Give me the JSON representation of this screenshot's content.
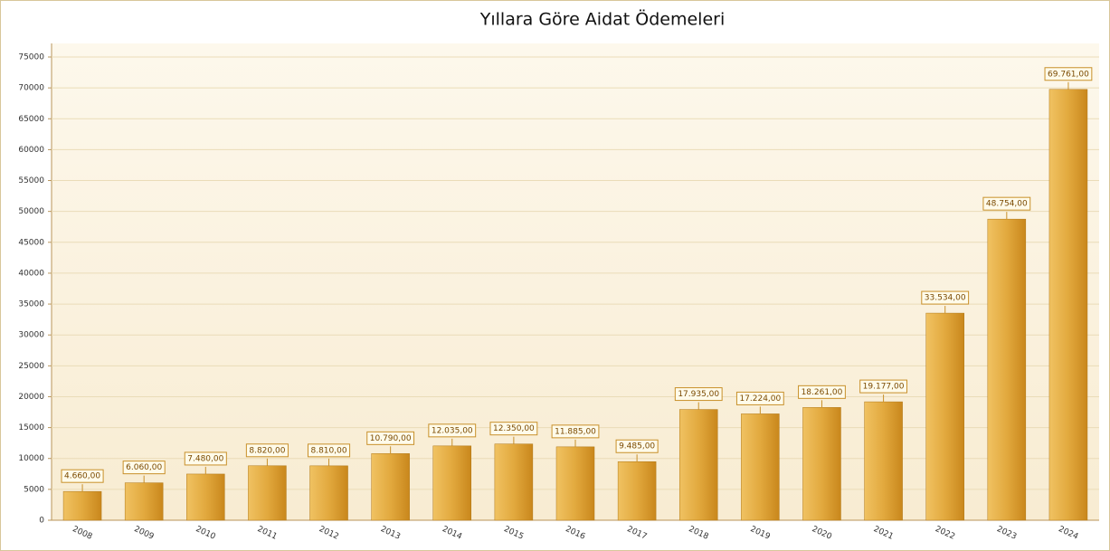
{
  "chart_data": {
    "type": "bar",
    "title": "Yıllara Göre Aidat Ödemeleri",
    "categories": [
      "2008",
      "2009",
      "2010",
      "2011",
      "2012",
      "2013",
      "2014",
      "2015",
      "2016",
      "2017",
      "2018",
      "2019",
      "2020",
      "2021",
      "2022",
      "2023",
      "2024"
    ],
    "values": [
      4660,
      6060,
      7480,
      8820,
      8810,
      10790,
      12035,
      12350,
      11885,
      9485,
      17935,
      17224,
      18261,
      19177,
      33534,
      48754,
      69761
    ],
    "value_labels": [
      "4.660,00",
      "6.060,00",
      "7.480,00",
      "8.820,00",
      "8.810,00",
      "10.790,00",
      "12.035,00",
      "12.350,00",
      "11.885,00",
      "9.485,00",
      "17.935,00",
      "17.224,00",
      "18.261,00",
      "19.177,00",
      "33.534,00",
      "48.754,00",
      "69.761,00"
    ],
    "color": "#d99a2b",
    "ylim": [
      0,
      75000
    ],
    "yticks": [
      0,
      5000,
      10000,
      15000,
      20000,
      25000,
      30000,
      35000,
      40000,
      45000,
      50000,
      55000,
      60000,
      65000,
      70000,
      75000
    ],
    "grid": true
  }
}
